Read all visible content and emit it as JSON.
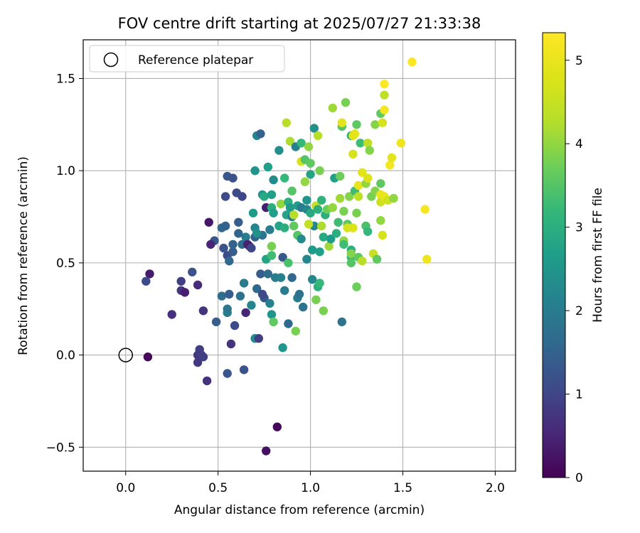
{
  "chart_data": {
    "type": "scatter",
    "title": "FOV centre drift starting at 2025/07/27 21:33:38",
    "xlabel": "Angular distance from reference (arcmin)",
    "ylabel": "Rotation from reference (arcmin)",
    "xlim": [
      -0.23,
      2.11
    ],
    "ylim": [
      -0.63,
      1.71
    ],
    "xticks": [
      0.0,
      0.5,
      1.0,
      1.5,
      2.0
    ],
    "xtick_labels": [
      "0.0",
      "0.5",
      "1.0",
      "1.5",
      "2.0"
    ],
    "yticks": [
      -0.5,
      0.0,
      0.5,
      1.0,
      1.5
    ],
    "ytick_labels": [
      "−0.5",
      "0.0",
      "0.5",
      "1.0",
      "1.5"
    ],
    "grid": true,
    "legend": {
      "location": "top-left",
      "entries": [
        "Reference platepar"
      ]
    },
    "reference_point": {
      "x": 0.0,
      "y": 0.0,
      "label": "Reference platepar",
      "marker": "open-circle"
    },
    "colorbar": {
      "label": "Hours from first FF file",
      "colormap": "viridis",
      "min": 0,
      "max": 5.33,
      "ticks": [
        0,
        1,
        2,
        3,
        4,
        5
      ],
      "tick_labels": [
        "0",
        "1",
        "2",
        "3",
        "4",
        "5"
      ]
    },
    "point_fields": [
      "x",
      "y",
      "hours"
    ],
    "points": [
      [
        0.12,
        -0.01,
        0.1
      ],
      [
        0.13,
        0.44,
        0.35
      ],
      [
        0.11,
        0.4,
        1.1
      ],
      [
        0.25,
        0.22,
        0.65
      ],
      [
        0.3,
        0.35,
        0.75
      ],
      [
        0.3,
        0.4,
        0.9
      ],
      [
        0.32,
        0.34,
        0.4
      ],
      [
        0.36,
        0.45,
        1.2
      ],
      [
        0.39,
        0.38,
        0.6
      ],
      [
        0.39,
        0.0,
        0.8
      ],
      [
        0.39,
        -0.04,
        0.8
      ],
      [
        0.4,
        0.03,
        0.85
      ],
      [
        0.41,
        0.0,
        0.85
      ],
      [
        0.42,
        0.24,
        0.7
      ],
      [
        0.42,
        -0.01,
        0.9
      ],
      [
        0.44,
        -0.14,
        0.7
      ],
      [
        0.45,
        0.72,
        0.3
      ],
      [
        0.48,
        0.62,
        1.3
      ],
      [
        0.49,
        0.18,
        1.4
      ],
      [
        0.52,
        0.69,
        1.6
      ],
      [
        0.52,
        0.32,
        1.7
      ],
      [
        0.54,
        0.7,
        1.5
      ],
      [
        0.54,
        0.86,
        1.1
      ],
      [
        0.55,
        0.97,
        1.3
      ],
      [
        0.55,
        0.54,
        1.1
      ],
      [
        0.55,
        0.23,
        2.0
      ],
      [
        0.55,
        0.25,
        1.9
      ],
      [
        0.55,
        -0.1,
        1.3
      ],
      [
        0.56,
        0.51,
        1.6
      ],
      [
        0.56,
        0.33,
        1.4
      ],
      [
        0.57,
        0.06,
        0.7
      ],
      [
        0.58,
        0.96,
        1.2
      ],
      [
        0.58,
        0.56,
        1.4
      ],
      [
        0.58,
        0.6,
        1.5
      ],
      [
        0.59,
        0.16,
        1.1
      ],
      [
        0.6,
        0.88,
        1.1
      ],
      [
        0.61,
        0.72,
        1.4
      ],
      [
        0.62,
        0.32,
        1.8
      ],
      [
        0.63,
        0.86,
        1.0
      ],
      [
        0.63,
        0.6,
        1.7
      ],
      [
        0.64,
        0.39,
        2.0
      ],
      [
        0.65,
        0.64,
        2.0
      ],
      [
        0.65,
        0.23,
        0.5
      ],
      [
        0.64,
        -0.08,
        1.2
      ],
      [
        0.67,
        0.59,
        0.6
      ],
      [
        0.68,
        0.27,
        2.2
      ],
      [
        0.69,
        0.77,
        2.6
      ],
      [
        0.7,
        1.0,
        2.5
      ],
      [
        0.7,
        0.69,
        2.2
      ],
      [
        0.7,
        0.64,
        1.5
      ],
      [
        0.7,
        0.09,
        2.3
      ],
      [
        0.71,
        1.19,
        2.2
      ],
      [
        0.71,
        0.36,
        1.6
      ],
      [
        0.72,
        0.09,
        0.9
      ],
      [
        0.73,
        1.2,
        1.5
      ],
      [
        0.73,
        0.44,
        1.4
      ],
      [
        0.74,
        0.87,
        2.5
      ],
      [
        0.74,
        0.65,
        1.8
      ],
      [
        0.75,
        0.31,
        1.3
      ],
      [
        0.75,
        0.86,
        2.9
      ],
      [
        0.76,
        0.8,
        0.4
      ],
      [
        0.76,
        0.52,
        2.8
      ],
      [
        0.76,
        -0.52,
        0.2
      ],
      [
        0.77,
        1.02,
        2.7
      ],
      [
        0.77,
        0.44,
        1.7
      ],
      [
        0.78,
        0.68,
        2.0
      ],
      [
        0.78,
        0.28,
        2.1
      ],
      [
        0.79,
        0.87,
        2.7
      ],
      [
        0.79,
        0.8,
        3.0
      ],
      [
        0.79,
        0.22,
        2.5
      ],
      [
        0.79,
        0.54,
        3.3
      ],
      [
        0.79,
        0.59,
        3.8
      ],
      [
        0.8,
        0.18,
        3.6
      ],
      [
        0.8,
        0.95,
        2.3
      ],
      [
        0.81,
        0.42,
        2.0
      ],
      [
        0.82,
        -0.39,
        0.1
      ],
      [
        0.83,
        1.11,
        2.4
      ],
      [
        0.83,
        0.7,
        2.8
      ],
      [
        0.84,
        0.82,
        4.0
      ],
      [
        0.85,
        0.53,
        1.3
      ],
      [
        0.85,
        0.04,
        2.5
      ],
      [
        0.86,
        0.69,
        3.0
      ],
      [
        0.86,
        0.35,
        2.0
      ],
      [
        0.86,
        0.96,
        3.2
      ],
      [
        0.87,
        0.76,
        2.8
      ],
      [
        0.87,
        1.26,
        4.3
      ],
      [
        0.88,
        0.5,
        3.4
      ],
      [
        0.88,
        0.83,
        3.0
      ],
      [
        0.88,
        0.17,
        1.6
      ],
      [
        0.89,
        0.8,
        2.6
      ],
      [
        0.89,
        1.16,
        4.2
      ],
      [
        0.9,
        0.89,
        3.5
      ],
      [
        0.9,
        0.42,
        1.6
      ],
      [
        0.9,
        0.75,
        2.0
      ],
      [
        0.91,
        0.76,
        4.3
      ],
      [
        0.91,
        0.7,
        3.6
      ],
      [
        0.92,
        0.13,
        3.8
      ],
      [
        0.92,
        1.13,
        2.1
      ],
      [
        0.93,
        0.65,
        3.5
      ],
      [
        0.93,
        0.31,
        2.0
      ],
      [
        0.93,
        0.81,
        2.7
      ],
      [
        0.94,
        0.33,
        1.8
      ],
      [
        0.95,
        1.15,
        3.2
      ],
      [
        0.95,
        0.8,
        2.0
      ],
      [
        0.95,
        1.05,
        4.7
      ],
      [
        0.95,
        0.63,
        2.3
      ],
      [
        0.96,
        0.26,
        1.8
      ],
      [
        0.97,
        1.06,
        3.5
      ],
      [
        0.97,
        0.94,
        4.0
      ],
      [
        0.98,
        0.84,
        2.5
      ],
      [
        0.98,
        0.79,
        2.2
      ],
      [
        0.99,
        1.13,
        4.0
      ],
      [
        1.0,
        1.04,
        3.6
      ],
      [
        1.0,
        0.77,
        2.9
      ],
      [
        1.0,
        0.98,
        2.8
      ],
      [
        1.01,
        0.57,
        2.6
      ],
      [
        1.01,
        0.41,
        2.2
      ],
      [
        1.02,
        1.23,
        2.4
      ],
      [
        1.02,
        0.7,
        2.2
      ],
      [
        1.03,
        0.3,
        3.8
      ],
      [
        1.03,
        0.81,
        4.5
      ],
      [
        1.04,
        0.79,
        3.0
      ],
      [
        1.04,
        1.19,
        4.3
      ],
      [
        1.04,
        0.37,
        3.0
      ],
      [
        1.05,
        0.56,
        2.7
      ],
      [
        1.05,
        0.39,
        3.2
      ],
      [
        1.05,
        1.0,
        3.8
      ],
      [
        1.06,
        0.84,
        3.1
      ],
      [
        1.06,
        0.7,
        4.2
      ],
      [
        1.07,
        0.64,
        2.9
      ],
      [
        1.07,
        0.24,
        3.8
      ],
      [
        1.08,
        0.76,
        3.0
      ],
      [
        1.09,
        0.79,
        3.7
      ],
      [
        1.1,
        0.59,
        4.1
      ],
      [
        1.11,
        0.63,
        2.6
      ],
      [
        1.12,
        0.8,
        4.0
      ],
      [
        1.12,
        1.34,
        4.1
      ],
      [
        1.13,
        0.96,
        2.7
      ],
      [
        1.14,
        0.66,
        3.0
      ],
      [
        1.15,
        0.72,
        3.3
      ],
      [
        1.16,
        0.85,
        4.1
      ],
      [
        1.16,
        0.97,
        3.7
      ],
      [
        1.17,
        0.18,
        1.8
      ],
      [
        1.17,
        1.24,
        3.5
      ],
      [
        1.17,
        1.26,
        4.9
      ],
      [
        1.18,
        0.62,
        4.0
      ],
      [
        1.18,
        0.6,
        3.3
      ],
      [
        1.18,
        0.78,
        3.8
      ],
      [
        1.19,
        1.37,
        3.8
      ],
      [
        1.2,
        0.71,
        3.6
      ],
      [
        1.2,
        0.69,
        4.7
      ],
      [
        1.21,
        0.86,
        3.9
      ],
      [
        1.22,
        0.57,
        3.0
      ],
      [
        1.22,
        0.53,
        3.2
      ],
      [
        1.22,
        1.19,
        3.0
      ],
      [
        1.22,
        0.55,
        3.9
      ],
      [
        1.22,
        0.5,
        3.5
      ],
      [
        1.23,
        0.69,
        4.8
      ],
      [
        1.23,
        1.09,
        4.7
      ],
      [
        1.23,
        1.19,
        4.8
      ],
      [
        1.24,
        0.89,
        3.3
      ],
      [
        1.24,
        1.2,
        4.9
      ],
      [
        1.25,
        0.37,
        3.7
      ],
      [
        1.25,
        1.25,
        3.6
      ],
      [
        1.25,
        0.77,
        3.8
      ],
      [
        1.26,
        0.53,
        3.6
      ],
      [
        1.26,
        0.92,
        5.0
      ],
      [
        1.26,
        0.86,
        4.4
      ],
      [
        1.27,
        1.15,
        3.3
      ],
      [
        1.28,
        0.99,
        4.9
      ],
      [
        1.28,
        0.51,
        4.3
      ],
      [
        1.3,
        0.7,
        3.4
      ],
      [
        1.3,
        0.93,
        4.0
      ],
      [
        1.31,
        0.67,
        3.2
      ],
      [
        1.31,
        0.96,
        4.8
      ],
      [
        1.31,
        1.15,
        4.4
      ],
      [
        1.32,
        1.11,
        3.9
      ],
      [
        1.33,
        0.86,
        3.8
      ],
      [
        1.34,
        0.55,
        4.5
      ],
      [
        1.35,
        1.25,
        3.9
      ],
      [
        1.35,
        0.89,
        3.9
      ],
      [
        1.36,
        0.52,
        3.6
      ],
      [
        1.38,
        0.87,
        5.0
      ],
      [
        1.38,
        0.93,
        3.6
      ],
      [
        1.38,
        0.83,
        4.6
      ],
      [
        1.38,
        0.73,
        4.0
      ],
      [
        1.38,
        1.31,
        3.6
      ],
      [
        1.39,
        0.65,
        4.7
      ],
      [
        1.39,
        1.26,
        4.7
      ],
      [
        1.4,
        1.47,
        5.3
      ],
      [
        1.4,
        1.33,
        5.2
      ],
      [
        1.4,
        0.86,
        5.0
      ],
      [
        1.4,
        1.41,
        4.4
      ],
      [
        1.42,
        0.84,
        4.6
      ],
      [
        1.43,
        1.03,
        5.2
      ],
      [
        1.44,
        1.07,
        4.9
      ],
      [
        1.45,
        0.85,
        4.0
      ],
      [
        1.49,
        1.15,
        5.1
      ],
      [
        1.55,
        1.59,
        5.3
      ],
      [
        1.62,
        0.79,
        5.2
      ],
      [
        1.63,
        0.52,
        5.1
      ],
      [
        0.98,
        0.52,
        2.2
      ],
      [
        0.46,
        0.6,
        0.5
      ],
      [
        0.66,
        0.6,
        0.45
      ],
      [
        0.53,
        0.58,
        1.2
      ],
      [
        0.68,
        0.58,
        1.0
      ],
      [
        0.74,
        0.33,
        1.1
      ],
      [
        0.61,
        0.66,
        1.55
      ],
      [
        0.84,
        0.42,
        2.1
      ],
      [
        0.99,
        0.71,
        4.45
      ],
      [
        0.71,
        0.66,
        2.4
      ],
      [
        0.8,
        0.77,
        2.7
      ]
    ]
  }
}
